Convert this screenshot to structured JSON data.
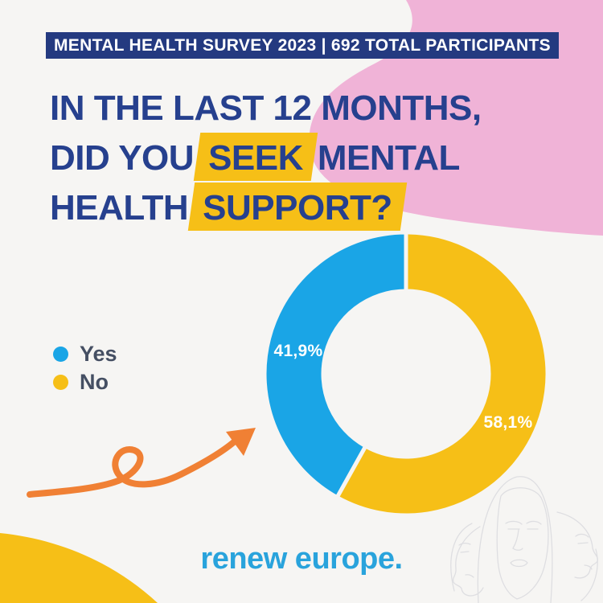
{
  "banner": {
    "text": "MENTAL HEALTH SURVEY 2023 | 692 TOTAL PARTICIPANTS"
  },
  "title": {
    "line1": "IN THE LAST 12 MONTHS,",
    "line2_prefix": "DID YOU",
    "line2_highlight": "SEEK",
    "line2_suffix": "MENTAL",
    "line3_prefix": "HEALTH",
    "line3_highlight": "SUPPORT?"
  },
  "chart_data": {
    "type": "pie",
    "donut": true,
    "title": "In the last 12 months, did you seek mental health support?",
    "total_participants": 692,
    "start": "12-oclock",
    "direction": "counterclockwise",
    "legend_position": "left",
    "slices": [
      {
        "label": "Yes",
        "value_pct": 41.9,
        "value_label": "41,9%",
        "color": "#1aa5e6"
      },
      {
        "label": "No",
        "value_pct": 58.1,
        "value_label": "58,1%",
        "color": "#f6bf17"
      }
    ]
  },
  "footer": {
    "logo_text": "renew europe."
  },
  "colors": {
    "background": "#f6f5f3",
    "banner_bg": "#243a80",
    "title_text": "#26408e",
    "highlight_yellow": "#f6bf17",
    "yes_blue": "#1aa5e6",
    "no_yellow": "#f6bf17",
    "pink_blob": "#f0b3d7",
    "yellow_blob": "#f6bf17",
    "orange_arrow": "#f08034",
    "legend_text": "#454f63",
    "logo_cyan": "#29a3dc",
    "slice_label_text": "#ffffff",
    "faces_line": "#dcdce0"
  }
}
